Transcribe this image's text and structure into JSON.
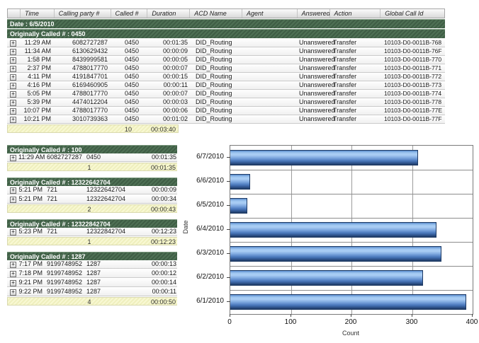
{
  "colors": {
    "group_band_green": "#46684C",
    "summary_yellow": "#F4F4C8",
    "bar_blue": "#5D8FD2",
    "header_gray": "#E5E5E5"
  },
  "icons": {
    "expand_glyph": "+"
  },
  "table": {
    "columns": [
      "",
      "Time",
      "Calling party #",
      "Called #",
      "Duration",
      "ACD Name",
      "Agent",
      "Answered",
      "Action",
      "Global Call Id"
    ],
    "date_band": "Date : 6/5/2010",
    "main_group": {
      "header": "Originally Called # : 0450",
      "rows": [
        [
          "11:29 AM",
          "6082727287",
          "0450",
          "00:01:35",
          "DID_Routing",
          "",
          "Unanswered",
          "Transfer",
          "10103-D0-0011B-768"
        ],
        [
          "11:34 AM",
          "6130629432",
          "0450",
          "00:00:09",
          "DID_Routing",
          "",
          "Unanswered",
          "Transfer",
          "10103-D0-0011B-76F"
        ],
        [
          "1:58 PM",
          "8439999581",
          "0450",
          "00:00:05",
          "DID_Routing",
          "",
          "Unanswered",
          "Transfer",
          "10103-D0-0011B-770"
        ],
        [
          "2:37 PM",
          "4788017770",
          "0450",
          "00:00:07",
          "DID_Routing",
          "",
          "Unanswered",
          "Transfer",
          "10103-D0-0011B-771"
        ],
        [
          "4:11 PM",
          "4191847701",
          "0450",
          "00:00:15",
          "DID_Routing",
          "",
          "Unanswered",
          "Transfer",
          "10103-D0-0011B-772"
        ],
        [
          "4:16 PM",
          "6169460905",
          "0450",
          "00:00:11",
          "DID_Routing",
          "",
          "Unanswered",
          "Transfer",
          "10103-D0-0011B-773"
        ],
        [
          "5:05 PM",
          "4788017770",
          "0450",
          "00:00:07",
          "DID_Routing",
          "",
          "Unanswered",
          "Transfer",
          "10103-D0-0011B-774"
        ],
        [
          "5:39 PM",
          "4474012204",
          "0450",
          "00:00:03",
          "DID_Routing",
          "",
          "Unanswered",
          "Transfer",
          "10103-D0-0011B-778"
        ],
        [
          "10:07 PM",
          "4788017770",
          "0450",
          "00:00:06",
          "DID_Routing",
          "",
          "Unanswered",
          "Transfer",
          "10103-D0-0011B-77E"
        ],
        [
          "10:21 PM",
          "3010739363",
          "0450",
          "00:01:02",
          "DID_Routing",
          "",
          "Unanswered",
          "Transfer",
          "10103-D0-0011B-77F"
        ]
      ],
      "summary": {
        "count": "10",
        "total": "00:03:40"
      }
    },
    "groups": [
      {
        "header": "Originally Called # : 100",
        "rows": [
          [
            "11:29 AM",
            "6082727287",
            "0450",
            "00:01:35"
          ]
        ],
        "summary": {
          "count": "1",
          "total": "00:01:35"
        }
      },
      {
        "header": "Originally Called # : 12322642704",
        "rows": [
          [
            "5:21 PM",
            "721",
            "12322642704",
            "00:00:09"
          ],
          [
            "5:21 PM",
            "721",
            "12322642704",
            "00:00:34"
          ]
        ],
        "summary": {
          "count": "2",
          "total": "00:00:43"
        }
      },
      {
        "header": "Originally Called # : 12322842704",
        "rows": [
          [
            "5:23 PM",
            "721",
            "12322842704",
            "00:12:23"
          ]
        ],
        "summary": {
          "count": "1",
          "total": "00:12:23"
        }
      },
      {
        "header": "Originally Called # : 1287",
        "rows": [
          [
            "7:17 PM",
            "9199748952",
            "1287",
            "00:00:13"
          ],
          [
            "7:18 PM",
            "9199748952",
            "1287",
            "00:00:12"
          ],
          [
            "9:21 PM",
            "9199748952",
            "1287",
            "00:00:14"
          ],
          [
            "9:22 PM",
            "9199748952",
            "1287",
            "00:00:11"
          ]
        ],
        "summary": {
          "count": "4",
          "total": "00:00:50"
        }
      }
    ]
  },
  "chart_data": {
    "type": "bar",
    "orientation": "horizontal",
    "title": "",
    "xlabel": "Count",
    "ylabel": "Date",
    "categories": [
      "6/7/2010",
      "6/6/2010",
      "6/5/2010",
      "6/4/2010",
      "6/3/2010",
      "6/2/2010",
      "6/1/2010"
    ],
    "values": [
      310,
      33,
      28,
      340,
      348,
      318,
      390
    ],
    "xlim": [
      0,
      400
    ],
    "xticks": [
      0,
      100,
      200,
      300,
      400
    ],
    "grid": true,
    "bar_color": "#5D8FD2"
  }
}
